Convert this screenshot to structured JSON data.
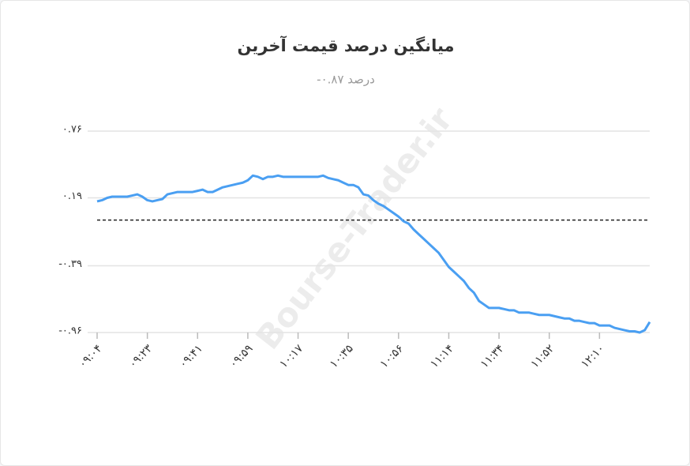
{
  "chart_data": {
    "type": "line",
    "title": "میانگین درصد قیمت آخرین",
    "subtitle": "-۰.۸۷ درصد",
    "watermark": "Bourse-Trader.ir",
    "categories": [
      "۰۹:۰۴",
      null,
      null,
      null,
      null,
      null,
      null,
      null,
      null,
      null,
      "۰۹:۲۳",
      null,
      null,
      null,
      null,
      null,
      null,
      null,
      null,
      null,
      "۰۹:۴۱",
      null,
      null,
      null,
      null,
      null,
      null,
      null,
      null,
      null,
      "۰۹:۵۹",
      null,
      null,
      null,
      null,
      null,
      null,
      null,
      null,
      null,
      "۱۰:۱۷",
      null,
      null,
      null,
      null,
      null,
      null,
      null,
      null,
      null,
      "۱۰:۳۵",
      null,
      null,
      null,
      null,
      null,
      null,
      null,
      null,
      null,
      "۱۰:۵۶",
      null,
      null,
      null,
      null,
      null,
      null,
      null,
      null,
      null,
      "۱۱:۱۴",
      null,
      null,
      null,
      null,
      null,
      null,
      null,
      null,
      null,
      "۱۱:۳۴",
      null,
      null,
      null,
      null,
      null,
      null,
      null,
      null,
      null,
      "۱۱:۵۲",
      null,
      null,
      null,
      null,
      null,
      null,
      null,
      null,
      null,
      "۱۲:۱۰",
      null,
      null,
      null,
      null,
      null,
      null,
      null,
      null,
      null,
      null
    ],
    "values": [
      0.16,
      0.17,
      0.19,
      0.2,
      0.2,
      0.2,
      0.2,
      0.21,
      0.22,
      0.2,
      0.17,
      0.16,
      0.17,
      0.18,
      0.22,
      0.23,
      0.24,
      0.24,
      0.24,
      0.24,
      0.25,
      0.26,
      0.24,
      0.24,
      0.26,
      0.28,
      0.29,
      0.3,
      0.31,
      0.32,
      0.34,
      0.38,
      0.37,
      0.35,
      0.37,
      0.37,
      0.38,
      0.37,
      0.37,
      0.37,
      0.37,
      0.37,
      0.37,
      0.37,
      0.37,
      0.38,
      0.36,
      0.35,
      0.34,
      0.32,
      0.3,
      0.3,
      0.28,
      0.22,
      0.21,
      0.17,
      0.14,
      0.12,
      0.09,
      0.06,
      0.03,
      -0.01,
      -0.03,
      -0.08,
      -0.12,
      -0.16,
      -0.2,
      -0.24,
      -0.28,
      -0.34,
      -0.4,
      -0.44,
      -0.48,
      -0.52,
      -0.58,
      -0.62,
      -0.69,
      -0.72,
      -0.75,
      -0.75,
      -0.75,
      -0.76,
      -0.77,
      -0.77,
      -0.79,
      -0.79,
      -0.79,
      -0.8,
      -0.81,
      -0.81,
      -0.81,
      -0.82,
      -0.83,
      -0.84,
      -0.84,
      -0.86,
      -0.86,
      -0.87,
      -0.88,
      -0.88,
      -0.9,
      -0.9,
      -0.9,
      -0.92,
      -0.93,
      -0.94,
      -0.95,
      -0.95,
      -0.96,
      -0.94,
      -0.87
    ],
    "color": "#4a9ff2",
    "reference_line": 0,
    "ylim": [
      -0.96,
      0.76
    ],
    "yticks": [
      {
        "value": -0.96,
        "label": "-۰.۹۶"
      },
      {
        "value": -0.39,
        "label": "-۰.۳۹"
      },
      {
        "value": 0.19,
        "label": "۰.۱۹"
      },
      {
        "value": 0.76,
        "label": "۰.۷۶"
      }
    ],
    "grid": true
  }
}
